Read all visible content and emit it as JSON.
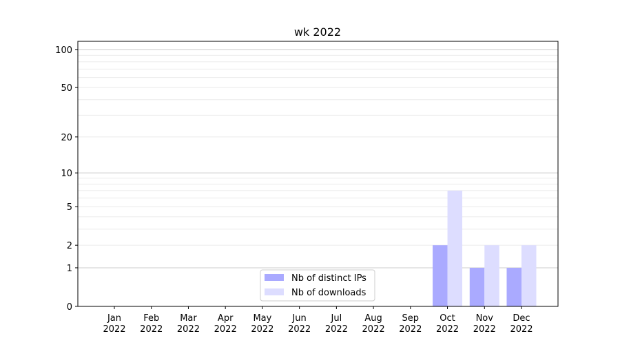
{
  "chart_data": {
    "type": "bar",
    "title": "wk 2022",
    "xlabel": "",
    "ylabel": "",
    "y_scale": "log(1+y)",
    "ylim": [
      0,
      116
    ],
    "grid": true,
    "legend_position": "lower-center",
    "categories": [
      "Jan\n2022",
      "Feb\n2022",
      "Mar\n2022",
      "Apr\n2022",
      "May\n2022",
      "Jun\n2022",
      "Jul\n2022",
      "Aug\n2022",
      "Sep\n2022",
      "Oct\n2022",
      "Nov\n2022",
      "Dec\n2022"
    ],
    "y_ticks": [
      0,
      1,
      2,
      5,
      10,
      20,
      50,
      100
    ],
    "series": [
      {
        "name": "Nb of distinct IPs",
        "color": "#aaaaff",
        "values": [
          0,
          0,
          0,
          0,
          0,
          0,
          0,
          0,
          0,
          2,
          1,
          1
        ]
      },
      {
        "name": "Nb of downloads",
        "color": "#ddddff",
        "values": [
          0,
          0,
          0,
          0,
          0,
          0,
          0,
          0,
          0,
          7,
          2,
          2
        ]
      }
    ]
  }
}
